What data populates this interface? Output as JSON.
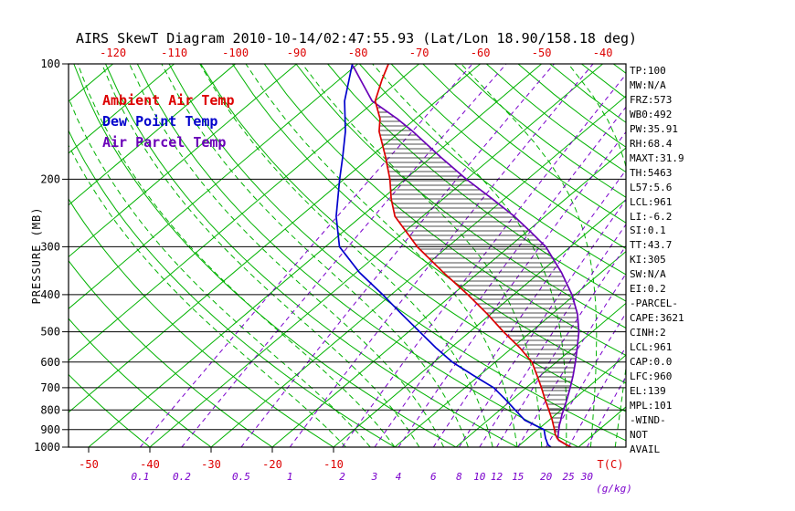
{
  "chart_data": {
    "type": "skewt",
    "title": "AIRS SkewT Diagram 2010-10-14/02:47:55.93 (Lat/Lon 18.90/158.18 deg)",
    "ylabel": "PRESSURE (MB)",
    "x_axis_label": "T(C)",
    "mixing_axis_label": "(g/kg)",
    "pressure_range": [
      100,
      1000
    ],
    "pressure_ticks": [
      100,
      200,
      300,
      400,
      500,
      600,
      700,
      800,
      900,
      1000
    ],
    "top_temp_labels_c": [
      -120,
      -110,
      -100,
      -90,
      -80,
      -70,
      -60,
      -50,
      -40
    ],
    "bottom_temp_labels_c": [
      -50,
      -40,
      -30,
      -20,
      -10
    ],
    "isotherms_c": [
      -120,
      -110,
      -100,
      -90,
      -80,
      -70,
      -60,
      -50,
      -40,
      -30,
      -20,
      -10,
      0,
      10,
      20,
      30,
      40
    ],
    "dry_adiabats_c": [
      -40,
      -30,
      -20,
      -10,
      0,
      10,
      20,
      30,
      40,
      50,
      60,
      70,
      80,
      90,
      100,
      110,
      120,
      130,
      140,
      150,
      160,
      170,
      180,
      190,
      200
    ],
    "moist_adiabats_c": [
      -8,
      -4,
      0,
      4,
      8,
      12,
      16,
      20,
      24,
      28,
      32,
      36
    ],
    "mixing_ratio_lines_gkg": [
      0.1,
      0.2,
      0.5,
      1,
      2,
      3,
      4,
      6,
      8,
      10,
      12,
      15,
      20,
      25,
      30
    ],
    "grid": true,
    "legend": [
      {
        "label": "Ambient Air Temp",
        "color": "#dd0000"
      },
      {
        "label": "Dew Point Temp",
        "color": "#0000cc"
      },
      {
        "label": "Air Parcel Temp",
        "color": "#6a00b8"
      }
    ],
    "series": [
      {
        "name": "Ambient Air Temp",
        "color": "#dd0000",
        "points": [
          [
            1000,
            28.8
          ],
          [
            985,
            27.5
          ],
          [
            961,
            25.6
          ],
          [
            950,
            24.9
          ],
          [
            925,
            23.7
          ],
          [
            900,
            22.7
          ],
          [
            875,
            21.6
          ],
          [
            850,
            20.5
          ],
          [
            800,
            18.0
          ],
          [
            750,
            15.3
          ],
          [
            700,
            12.5
          ],
          [
            650,
            9.4
          ],
          [
            600,
            6.0
          ],
          [
            550,
            1.2
          ],
          [
            500,
            -4.5
          ],
          [
            450,
            -10.5
          ],
          [
            400,
            -17.5
          ],
          [
            350,
            -25.8
          ],
          [
            300,
            -35.0
          ],
          [
            250,
            -44.5
          ],
          [
            225,
            -48.5
          ],
          [
            200,
            -52.5
          ],
          [
            175,
            -57.5
          ],
          [
            150,
            -63.5
          ],
          [
            139,
            -65.8
          ],
          [
            125,
            -70.0
          ],
          [
            110,
            -73.0
          ],
          [
            100,
            -75.0
          ]
        ]
      },
      {
        "name": "Dew Point Temp",
        "color": "#0000cc",
        "points": [
          [
            1000,
            25.5
          ],
          [
            985,
            24.5
          ],
          [
            961,
            23.5
          ],
          [
            950,
            23.0
          ],
          [
            925,
            22.0
          ],
          [
            900,
            21.0
          ],
          [
            875,
            18.5
          ],
          [
            850,
            16.0
          ],
          [
            800,
            12.5
          ],
          [
            750,
            8.8
          ],
          [
            700,
            4.7
          ],
          [
            650,
            -1.0
          ],
          [
            600,
            -7.0
          ],
          [
            550,
            -12.5
          ],
          [
            500,
            -18.2
          ],
          [
            450,
            -24.5
          ],
          [
            400,
            -31.4
          ],
          [
            350,
            -39.5
          ],
          [
            300,
            -47.7
          ],
          [
            250,
            -54.1
          ],
          [
            200,
            -60.7
          ],
          [
            175,
            -64.5
          ],
          [
            150,
            -69.0
          ],
          [
            125,
            -75.0
          ],
          [
            100,
            -80.9
          ]
        ]
      },
      {
        "name": "Air Parcel Temp",
        "color": "#6a00b8",
        "points": [
          [
            1000,
            28.8
          ],
          [
            985,
            27.5
          ],
          [
            961,
            25.5
          ],
          [
            950,
            25.0
          ],
          [
            925,
            24.2
          ],
          [
            900,
            23.4
          ],
          [
            875,
            22.6
          ],
          [
            850,
            21.9
          ],
          [
            825,
            21.1
          ],
          [
            800,
            20.4
          ],
          [
            750,
            18.9
          ],
          [
            700,
            17.2
          ],
          [
            650,
            15.3
          ],
          [
            600,
            13.1
          ],
          [
            550,
            10.6
          ],
          [
            500,
            7.8
          ],
          [
            450,
            4.2
          ],
          [
            400,
            -0.5
          ],
          [
            350,
            -6.5
          ],
          [
            300,
            -14.0
          ],
          [
            275,
            -19.2
          ],
          [
            250,
            -25.0
          ],
          [
            225,
            -32.0
          ],
          [
            200,
            -40.0
          ],
          [
            175,
            -48.5
          ],
          [
            150,
            -58.0
          ],
          [
            139,
            -63.0
          ],
          [
            125,
            -70.5
          ],
          [
            110,
            -76.5
          ],
          [
            101,
            -80.5
          ]
        ]
      }
    ]
  },
  "stats_panel": {
    "lines": [
      "TP:100",
      "MW:N/A",
      "FRZ:573",
      "WB0:492",
      "PW:35.91",
      "RH:68.4",
      "MAXT:31.9",
      "TH:5463",
      "L57:5.6",
      "LCL:961",
      "LI:-6.2",
      "SI:0.1",
      "TT:43.7",
      "KI:305",
      "SW:N/A",
      "EI:0.2",
      "-PARCEL-",
      "CAPE:3621",
      "CINH:2",
      "LCL:961",
      "CAP:0.0",
      "LFC:960",
      "EL:139",
      "MPL:101",
      "-WIND-",
      "NOT",
      "AVAIL"
    ]
  },
  "colors": {
    "isotherm": "#00b200",
    "dry_adiabat": "#00b200",
    "moist_adiabat": "#00b200",
    "mixing_ratio": "#7a00cc",
    "pressure_line": "#000000",
    "frame": "#000000",
    "hatch": "#111111",
    "axis_text": "#000000",
    "temp_label": "#dd0000",
    "mixing_label": "#7a00cc"
  }
}
